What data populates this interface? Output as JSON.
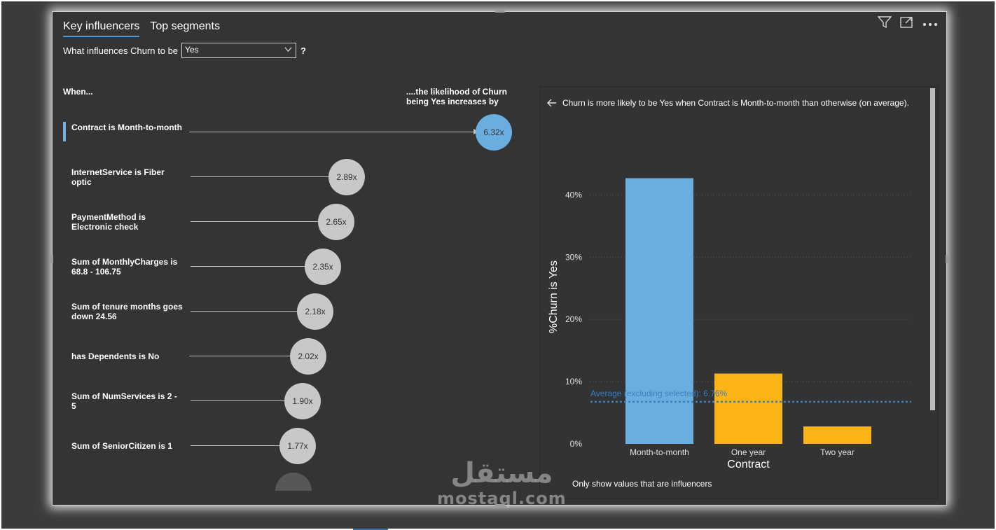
{
  "tabs": [
    {
      "label": "Key influencers",
      "active": true
    },
    {
      "label": "Top segments",
      "active": false
    }
  ],
  "question": {
    "prefix": "What influences Churn to be",
    "selected": "Yes",
    "help": "?"
  },
  "toolbar": {
    "icons": [
      "filter-icon",
      "focus-mode-icon",
      "more-options-icon"
    ]
  },
  "influencers": {
    "when_header": "When...",
    "likelihood_header": "....the likelihood of Churn being Yes increases by",
    "items": [
      {
        "label": "Contract is Month-to-month",
        "value": "6.32x",
        "selected": true
      },
      {
        "label": "InternetService is Fiber optic",
        "value": "2.89x",
        "selected": false
      },
      {
        "label": "PaymentMethod is Electronic check",
        "value": "2.65x",
        "selected": false
      },
      {
        "label": "Sum of MonthlyCharges is 68.8 - 106.75",
        "value": "2.35x",
        "selected": false
      },
      {
        "label": "Sum of tenure months goes down 24.56",
        "value": "2.18x",
        "selected": false
      },
      {
        "label": "has Dependents is No",
        "value": "2.02x",
        "selected": false
      },
      {
        "label": "Sum of NumServices is 2 - 5",
        "value": "1.90x",
        "selected": false
      },
      {
        "label": "Sum of SeniorCitizen is 1",
        "value": "1.77x",
        "selected": false
      }
    ]
  },
  "detail": {
    "headline": "Churn is more likely to be Yes when Contract is Month-to-month than otherwise (on average).",
    "only_show": "Only show values that are influencers"
  },
  "chart_data": {
    "type": "bar",
    "categories": [
      "Month-to-month",
      "One year",
      "Two year"
    ],
    "values": [
      42.7,
      11.3,
      2.8
    ],
    "colors": [
      "#6aaee0",
      "#fbb416",
      "#fbb416"
    ],
    "xlabel": "Contract",
    "ylabel": "%Churn is Yes",
    "ylim": [
      0,
      45
    ],
    "yticks": [
      0,
      10,
      20,
      30,
      40
    ],
    "ytick_labels": [
      "0%",
      "10%",
      "20%",
      "30%",
      "40%"
    ],
    "reference_line": {
      "label": "Average (excluding selected): 6.76%",
      "value": 6.76,
      "color": "#3b7fbf"
    },
    "grid": true
  },
  "watermark": {
    "arabic": "مستقل",
    "latin": "mostaql.com"
  }
}
